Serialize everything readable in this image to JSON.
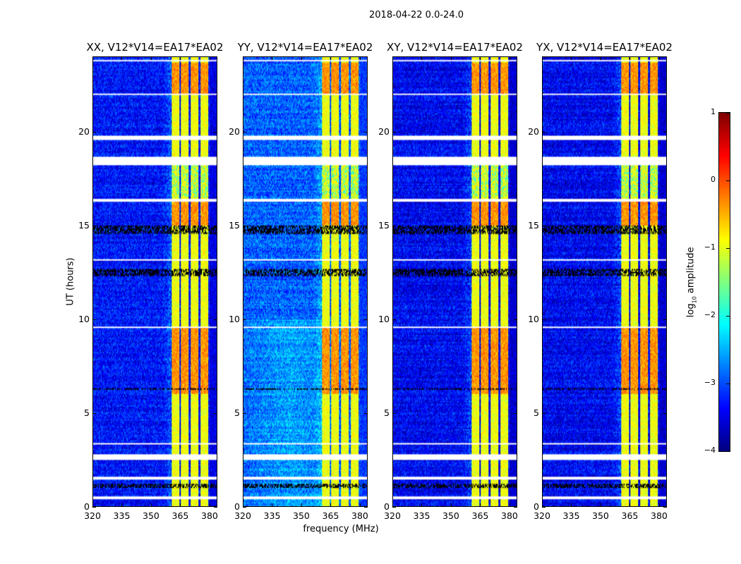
{
  "chart_data": {
    "type": "heatmap",
    "title": "2018-04-22 0.0-24.0",
    "xlabel": "frequency (MHz)",
    "ylabel": "UT (hours)",
    "xlim": [
      320,
      384
    ],
    "ylim": [
      0,
      24
    ],
    "xticks": [
      320,
      335,
      350,
      365,
      380
    ],
    "yticks": [
      0,
      5,
      10,
      15,
      20
    ],
    "panels": [
      {
        "title": "XX, V12*V14=EA17*EA02",
        "baseline": -3.3
      },
      {
        "title": "YY, V12*V14=EA17*EA02",
        "baseline": -2.9
      },
      {
        "title": "XY, V12*V14=EA17*EA02",
        "baseline": -3.4
      },
      {
        "title": "YX, V12*V14=EA17*EA02",
        "baseline": -3.4
      }
    ],
    "rfi_channels_mhz": [
      [
        360.8,
        364.9
      ],
      [
        365.6,
        369.6
      ],
      [
        370.6,
        374.6
      ],
      [
        375.6,
        379.6
      ]
    ],
    "rfi_level_log10": -1.0,
    "flagged_hours": [
      [
        23.75,
        23.85
      ],
      [
        21.95,
        22.05
      ],
      [
        19.55,
        19.8
      ],
      [
        18.2,
        18.7
      ],
      [
        16.25,
        16.4
      ],
      [
        2.5,
        2.8
      ],
      [
        1.45,
        1.55
      ],
      [
        0.35,
        0.5
      ],
      [
        9.8,
        9.85
      ],
      [
        9.55,
        9.6
      ],
      [
        11.75,
        11.8
      ],
      [
        13.15,
        13.2
      ],
      [
        17.0,
        17.05
      ],
      [
        7.55,
        7.6
      ],
      [
        3.3,
        3.35
      ]
    ],
    "dense_lines_hours": [
      [
        12.3,
        12.65
      ],
      [
        14.55,
        15.0
      ],
      [
        6.2,
        6.3
      ],
      [
        1.0,
        1.2
      ]
    ],
    "colorbar": {
      "label": "log10 amplitude",
      "label_main": "log",
      "label_sub": "10",
      "label_rest": " amplitude",
      "range": [
        -4,
        1
      ],
      "ticks": [
        "1",
        "0",
        "−1",
        "−2",
        "−3",
        "−4"
      ],
      "tick_values": [
        1,
        0,
        -1,
        -2,
        -3,
        -4
      ],
      "colormap": "jet"
    }
  }
}
